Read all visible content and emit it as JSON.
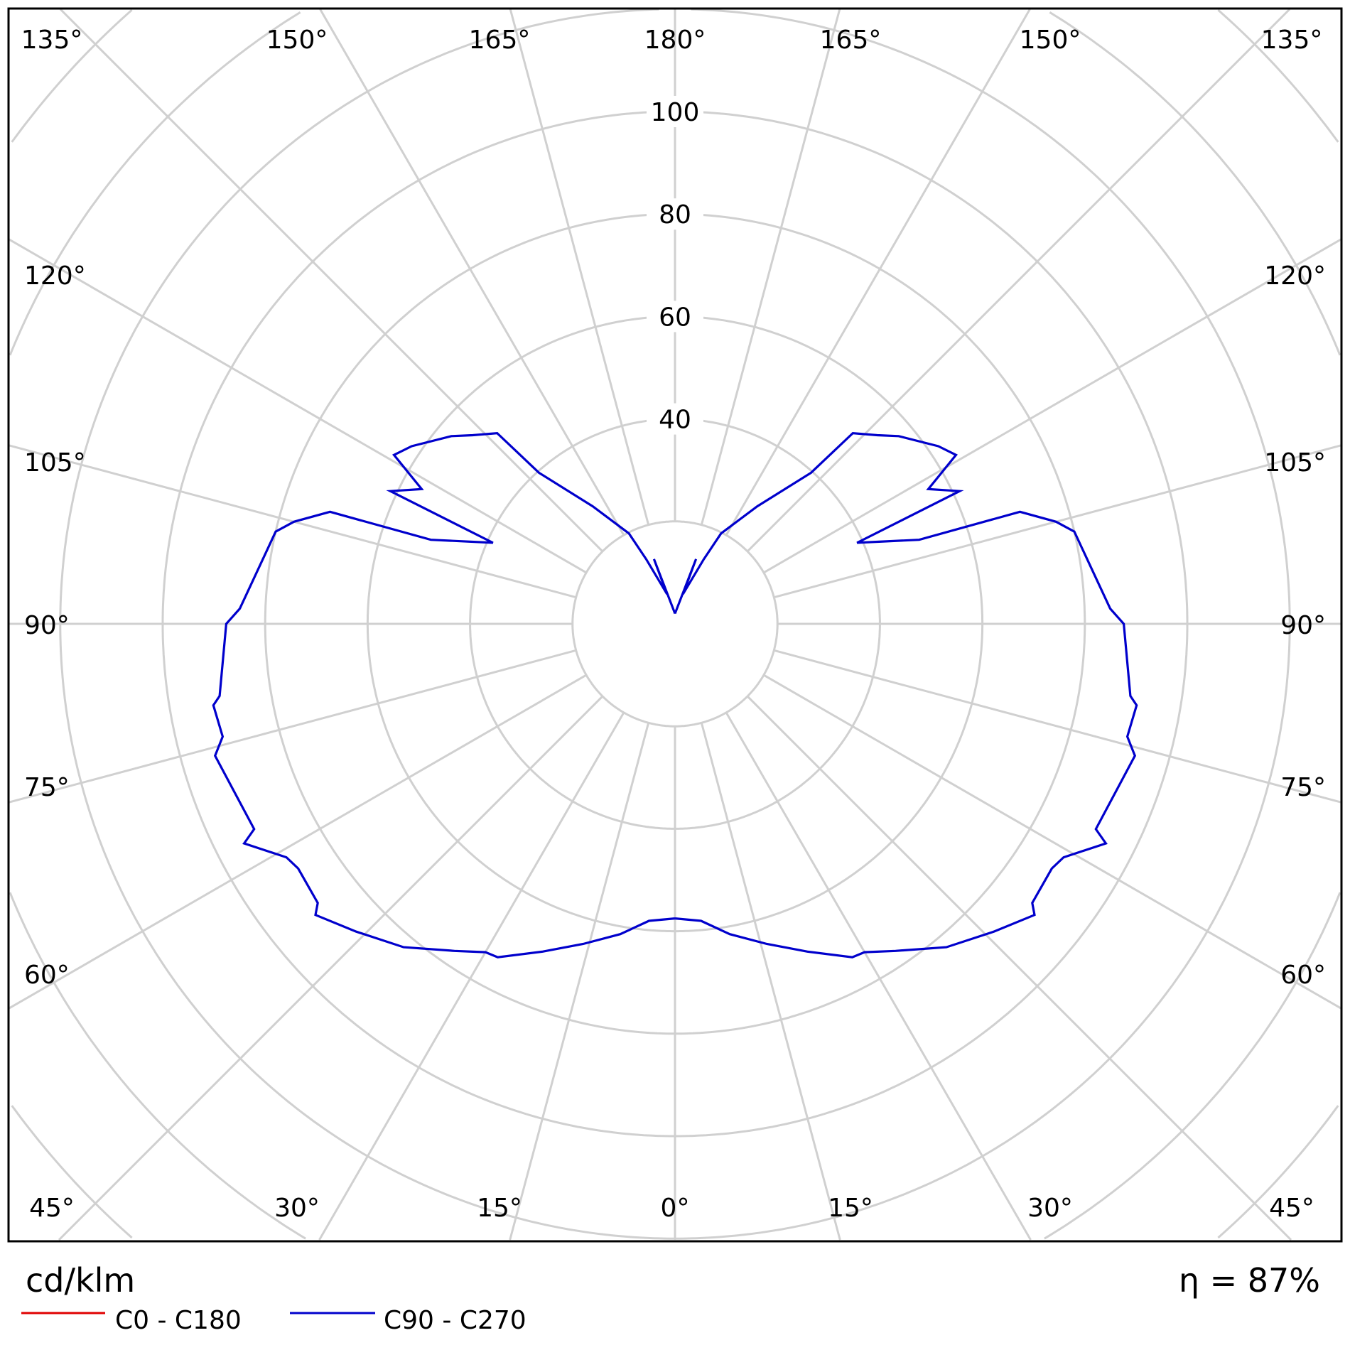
{
  "chart_data": {
    "type": "polar",
    "unit_label": "cd/klm",
    "efficiency_label": "η = 87%",
    "radial_ticks": [
      40,
      60,
      80,
      100
    ],
    "radial_grid": [
      20,
      40,
      60,
      80,
      100,
      120,
      140,
      160
    ],
    "angle_labels": {
      "top": [
        "135°",
        "150°",
        "165°",
        "180°",
        "165°",
        "150°",
        "135°"
      ],
      "left": [
        "120°",
        "105°",
        "90°",
        "75°",
        "60°"
      ],
      "right": [
        "120°",
        "105°",
        "90°",
        "75°",
        "60°"
      ],
      "bottom": [
        "45°",
        "30°",
        "15°",
        "0°",
        "15°",
        "30°",
        "45°"
      ]
    },
    "grid": true,
    "legend_placement": "bottom-left",
    "series": [
      {
        "name": "C0 - C180",
        "color": "#e00000",
        "points": []
      },
      {
        "name": "C90 - C270",
        "color": "#0000cc",
        "symmetric": true,
        "points": [
          [
            0,
            57.5
          ],
          [
            5,
            58.2
          ],
          [
            10,
            61.5
          ],
          [
            16,
            65
          ],
          [
            22,
            69
          ],
          [
            28,
            73.7
          ],
          [
            30,
            74
          ],
          [
            34,
            77
          ],
          [
            40,
            82.4
          ],
          [
            46,
            86.5
          ],
          [
            51,
            90.3
          ],
          [
            52,
            88.5
          ],
          [
            57,
            87.7
          ],
          [
            59,
            88.5
          ],
          [
            63,
            94.4
          ],
          [
            64,
            91.4
          ],
          [
            74,
            93.4
          ],
          [
            76,
            91
          ],
          [
            80,
            91.5
          ],
          [
            81,
            90
          ],
          [
            90,
            87.6
          ],
          [
            92,
            85
          ],
          [
            103,
            80
          ],
          [
            105,
            77
          ],
          [
            108,
            70.8
          ],
          [
            109,
            50.4
          ],
          [
            114,
            38.9
          ],
          [
            115,
            61.3
          ],
          [
            118,
            56
          ],
          [
            121,
            64
          ],
          [
            124,
            62
          ],
          [
            130,
            57
          ],
          [
            133,
            54
          ],
          [
            137,
            50.9
          ],
          [
            138,
            39.7
          ],
          [
            145,
            28
          ],
          [
            153,
            19.8
          ],
          [
            156,
            13.8
          ],
          [
            165,
            6
          ],
          [
            162,
            13.3
          ],
          [
            180,
            2
          ]
        ]
      }
    ]
  }
}
